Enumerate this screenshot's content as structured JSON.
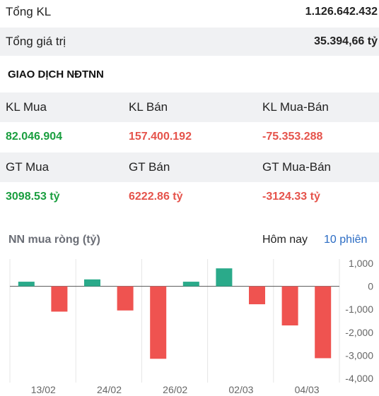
{
  "summary": {
    "total_volume_label": "Tổng KL",
    "total_volume_value": "1.126.642.432",
    "total_value_label": "Tổng giá trị",
    "total_value_value": "35.394,66 tỷ"
  },
  "foreign": {
    "section_title": "GIAO DỊCH NĐTNN",
    "headers_volume": [
      "KL Mua",
      "KL Bán",
      "KL Mua-Bán"
    ],
    "values_volume": [
      "82.046.904",
      "157.400.192",
      "-75.353.288"
    ],
    "headers_value": [
      "GT Mua",
      "GT Bán",
      "GT Mua-Bán"
    ],
    "values_value": [
      "3098.53 tỷ",
      "6222.86 tỷ",
      "-3124.33 tỷ"
    ]
  },
  "chart_header": {
    "title": "NN mua ròng (tỷ)",
    "tab_today": "Hôm nay",
    "tab_10_sessions": "10 phiên"
  },
  "colors": {
    "positive": "#2aaa8a",
    "negative": "#ef5350",
    "up_text": "#1a9e3f",
    "down_text": "#e5534b",
    "link": "#2b6cc4"
  },
  "chart_data": {
    "type": "bar",
    "title": "NN mua ròng (tỷ)",
    "categories": [
      "13/02",
      "",
      "24/02",
      "",
      "26/02",
      "",
      "02/03",
      "",
      "04/03",
      ""
    ],
    "x_tick_labels": [
      "13/02",
      "24/02",
      "26/02",
      "02/03",
      "04/03"
    ],
    "values": [
      200,
      -1100,
      300,
      -1050,
      -3150,
      200,
      780,
      -780,
      -1700,
      -3124.33
    ],
    "ylim": [
      -4000,
      1000
    ],
    "y_ticks": [
      1000,
      0,
      -1000,
      -2000,
      -3000,
      -4000
    ],
    "y_tick_labels": [
      "1,000",
      "0",
      "-1,000",
      "-2,000",
      "-3,000",
      "-4,000"
    ],
    "grid": "vertical",
    "legend": "none"
  }
}
